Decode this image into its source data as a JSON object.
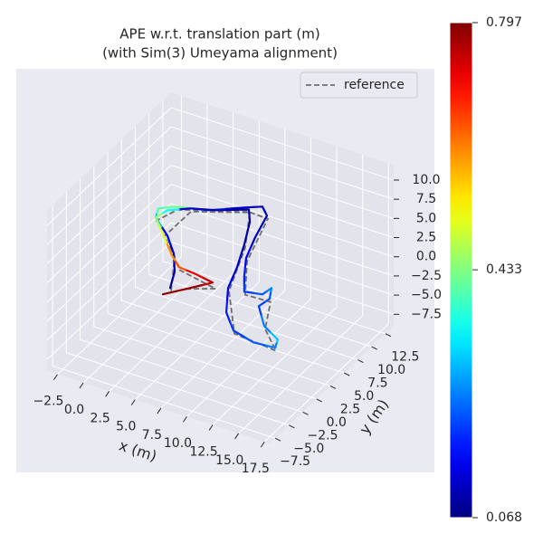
{
  "chart_data": {
    "type": "trajectory3d",
    "title": "APE w.r.t. translation part (m)",
    "subtitle": "(with Sim(3) Umeyama alignment)",
    "xlabel": "x (m)",
    "ylabel": "y (m)",
    "xlim": [
      -3.5,
      18
    ],
    "ylim": [
      -8.5,
      14
    ],
    "zlim": [
      -9,
      12
    ],
    "xticks": [
      {
        "value": -2.5,
        "label": "−2.5"
      },
      {
        "value": 0,
        "label": "0.0"
      },
      2.5,
      {
        "value": 5,
        "label": "5.0"
      },
      7.5,
      {
        "value": 10,
        "label": "10.0"
      },
      12.5,
      {
        "value": 15,
        "label": "15.0"
      },
      17.5
    ],
    "yticks": [
      {
        "value": -7.5,
        "label": "−7.5"
      },
      {
        "value": -5,
        "label": "−5.0"
      },
      {
        "value": -2.5,
        "label": "−2.5"
      },
      {
        "value": 0,
        "label": "0.0"
      },
      2.5,
      {
        "value": 5,
        "label": "5.0"
      },
      7.5,
      {
        "value": 10,
        "label": "10.0"
      },
      12.5
    ],
    "zticks": [
      {
        "value": -7.5,
        "label": "−7.5"
      },
      {
        "value": -5,
        "label": "−5.0"
      },
      {
        "value": -2.5,
        "label": "−2.5"
      },
      {
        "value": 0,
        "label": "0.0"
      },
      2.5,
      {
        "value": 5,
        "label": "5.0"
      },
      7.5,
      {
        "value": 10,
        "label": "10.0"
      }
    ],
    "grid": true,
    "legend": "upper right",
    "colormap": "jet",
    "colorbar": {
      "lim": [
        0.068,
        0.797
      ],
      "ticks": [
        0.068,
        0.433,
        0.797
      ]
    },
    "trajectory": {
      "x": [
        4.29,
        3.38,
        1.94,
        1.28,
        0.23,
        -0.26,
        0.91,
        3.46,
        5.85,
        7.09,
        8.1,
        7.73,
        7.49,
        8.73,
        9.9,
        11.41,
        11.58,
        12.27,
        12.04,
        13.94,
        15.95,
        16.37,
        14.39,
        12.07,
        10.18,
        8.46,
        7.53,
        6.33,
        6.18,
        6.32,
        4.11,
        2.02,
        0.53,
        0.23,
        0.82,
        1.95,
        3.36,
        4.95,
        6.94,
        5.73,
        4.25
      ],
      "y": [
        -0.8,
        1.73,
        4.27,
        4.35,
        4.2,
        5.61,
        6.71,
        7.66,
        9.72,
        10.69,
        9.61,
        8.17,
        6.97,
        4.3,
        2.11,
        2.57,
        3.89,
        2.26,
        0.72,
        -1.86,
        -3.17,
        -4.45,
        -4.69,
        -3.93,
        -1.68,
        1.88,
        5.26,
        8.82,
        10.11,
        9.67,
        8.08,
        7.08,
        5.77,
        4.2,
        4.4,
        3.92,
        2.58,
        2.39,
        1.94,
        0.12,
        -2.04
      ],
      "z": [
        0,
        0,
        0,
        2,
        4,
        4,
        4,
        4,
        4,
        4,
        4,
        2,
        0,
        0,
        0,
        0,
        0,
        0,
        0,
        0,
        0,
        0,
        0,
        0,
        0,
        0,
        0,
        0,
        2,
        4,
        4,
        4,
        4,
        4,
        2,
        0,
        0,
        0,
        0,
        0,
        0
      ],
      "ape": [
        0.08,
        0.1,
        0.12,
        0.15,
        0.3,
        0.4,
        0.42,
        0.2,
        0.12,
        0.1,
        0.1,
        0.12,
        0.15,
        0.18,
        0.2,
        0.22,
        0.25,
        0.22,
        0.2,
        0.25,
        0.3,
        0.25,
        0.22,
        0.2,
        0.18,
        0.15,
        0.12,
        0.1,
        0.1,
        0.1,
        0.1,
        0.12,
        0.35,
        0.45,
        0.5,
        0.6,
        0.65,
        0.72,
        0.75,
        0.78,
        0.79
      ]
    },
    "reference": {
      "name": "reference",
      "color": "#6e6e6e",
      "x": [
        4.59,
        2.24,
        0.53,
        1.21,
        6.15,
        8.4,
        7.79,
        10.2,
        12.57,
        14.24,
        16.67,
        12.37,
        8.76,
        6.63,
        6.62,
        2.32,
        1.12,
        3.66,
        7.6,
        5.5
      ],
      "y": [
        -1.2,
        3.87,
        3.8,
        6.31,
        9.32,
        9.21,
        6.57,
        1.71,
        1.86,
        -2.26,
        -4.85,
        -4.33,
        1.48,
        8.42,
        9.27,
        6.68,
        4.0,
        2.18,
        1.2,
        -0.2
      ],
      "z": [
        0,
        0,
        4,
        4,
        4,
        4,
        0,
        0,
        0,
        0,
        0,
        0,
        0,
        0,
        4,
        4,
        2,
        0,
        0,
        0
      ]
    }
  }
}
